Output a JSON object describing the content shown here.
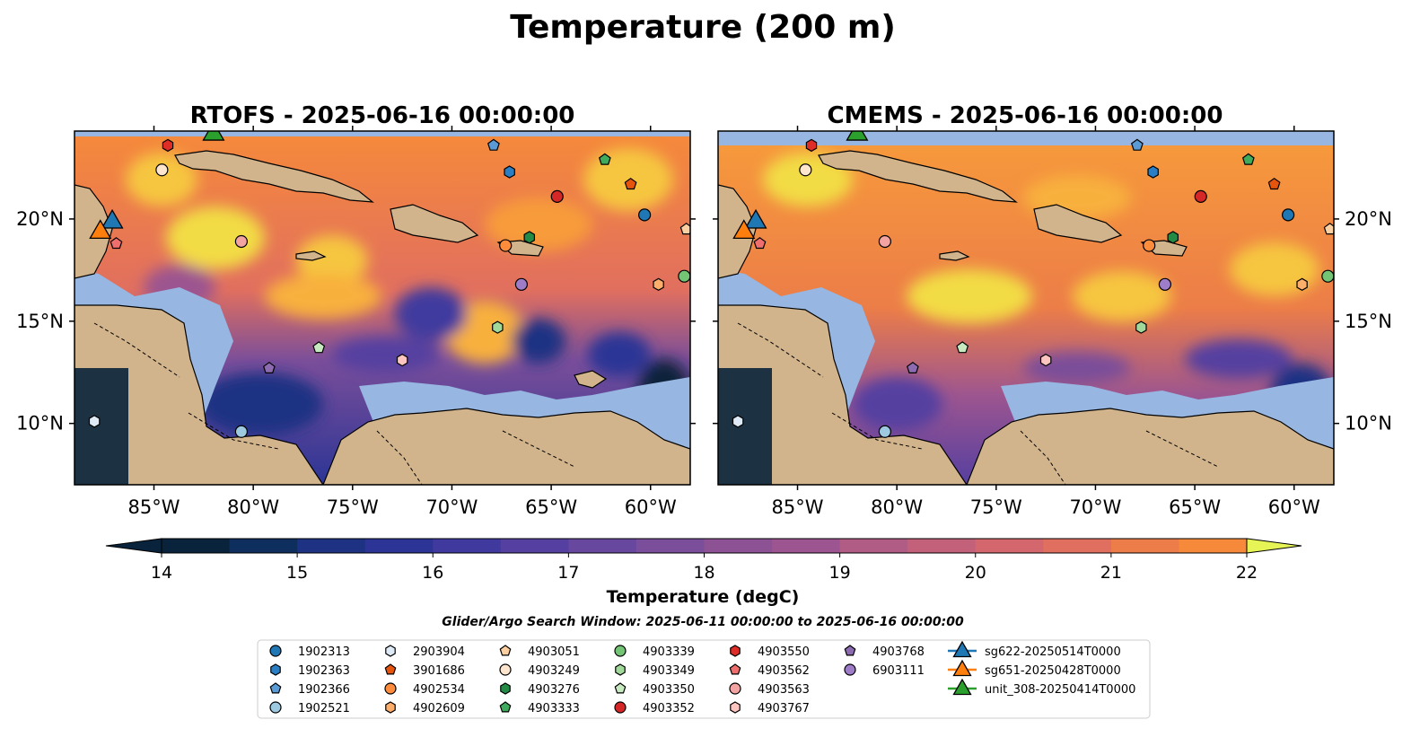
{
  "figure": {
    "title": "Temperature (200 m)",
    "search_window": "Glider/Argo Search Window: 2025-06-11 00:00:00 to 2025-06-16 00:00:00"
  },
  "panels": [
    {
      "title": "RTOFS - 2025-06-16 00:00:00",
      "model": "RTOFS"
    },
    {
      "title": "CMEMS - 2025-06-16 00:00:00",
      "model": "CMEMS"
    }
  ],
  "map": {
    "lon_range": [
      -89,
      -58
    ],
    "lat_range": [
      7,
      24.3
    ],
    "x_ticks": [
      {
        "lon": -85,
        "label": "85°W"
      },
      {
        "lon": -80,
        "label": "80°W"
      },
      {
        "lon": -75,
        "label": "75°W"
      },
      {
        "lon": -70,
        "label": "70°W"
      },
      {
        "lon": -65,
        "label": "65°W"
      },
      {
        "lon": -60,
        "label": "60°W"
      }
    ],
    "y_ticks": [
      {
        "lat": 10,
        "label": "10°N"
      },
      {
        "lat": 15,
        "label": "15°N"
      },
      {
        "lat": 20,
        "label": "20°N"
      }
    ],
    "land_color": "#d2b48c",
    "shelf_color": "#97b6e1"
  },
  "colorbar": {
    "label": "Temperature (degC)",
    "min": 14,
    "max": 22,
    "step": 0.5,
    "ticks": [
      "14",
      "15",
      "16",
      "17",
      "18",
      "19",
      "20",
      "21",
      "22"
    ],
    "colors": [
      "#08233b",
      "#0e2f5e",
      "#1e3283",
      "#2c3595",
      "#403a9f",
      "#553fa0",
      "#68479f",
      "#7a4e9a",
      "#8c5293",
      "#9c5590",
      "#b05c84",
      "#c3617a",
      "#d4676e",
      "#e16f5f",
      "#ec7d48",
      "#f68a3a",
      "#f79b3b",
      "#f8b03e",
      "#f6c63f",
      "#f2dc45",
      "#e6f455"
    ]
  },
  "floats": [
    {
      "id": "1902313",
      "marker": "circle",
      "color": "#1f77b4",
      "lon": -60.3,
      "lat": 20.2
    },
    {
      "id": "1902363",
      "marker": "hexagon",
      "color": "#2a7fc4",
      "lon": -67.1,
      "lat": 22.3
    },
    {
      "id": "1902366",
      "marker": "pentagon",
      "color": "#5a9bd5",
      "lon": -67.9,
      "lat": 23.6
    },
    {
      "id": "1902521",
      "marker": "circle",
      "color": "#9ecae1",
      "lon": -80.6,
      "lat": 9.6
    },
    {
      "id": "2903904",
      "marker": "hexagon",
      "color": "#deebf7",
      "lon": -88.0,
      "lat": 10.1
    },
    {
      "id": "3901686",
      "marker": "pentagon",
      "color": "#e6550d",
      "lon": -61.0,
      "lat": 21.7
    },
    {
      "id": "4902534",
      "marker": "circle",
      "color": "#fd8d3c",
      "lon": -67.3,
      "lat": 18.7
    },
    {
      "id": "4902609",
      "marker": "hexagon",
      "color": "#fdae6b",
      "lon": -59.6,
      "lat": 16.8
    },
    {
      "id": "4903051",
      "marker": "pentagon",
      "color": "#fdd0a2",
      "lon": -58.2,
      "lat": 19.5
    },
    {
      "id": "4903249",
      "marker": "circle",
      "color": "#fee6ce",
      "lon": -84.6,
      "lat": 22.4
    },
    {
      "id": "4903276",
      "marker": "hexagon",
      "color": "#238b45",
      "lon": -66.1,
      "lat": 19.1
    },
    {
      "id": "4903333",
      "marker": "pentagon",
      "color": "#41ab5d",
      "lon": -62.3,
      "lat": 22.9
    },
    {
      "id": "4903339",
      "marker": "circle",
      "color": "#74c476",
      "lon": -58.3,
      "lat": 17.2
    },
    {
      "id": "4903349",
      "marker": "hexagon",
      "color": "#a1d99b",
      "lon": -67.7,
      "lat": 14.7
    },
    {
      "id": "4903350",
      "marker": "pentagon",
      "color": "#c7e9c0",
      "lon": -76.7,
      "lat": 13.7
    },
    {
      "id": "4903352",
      "marker": "circle",
      "color": "#d62728",
      "lon": -64.7,
      "lat": 21.1
    },
    {
      "id": "4903550",
      "marker": "hexagon",
      "color": "#de2d26",
      "lon": -84.3,
      "lat": 23.6
    },
    {
      "id": "4903562",
      "marker": "pentagon",
      "color": "#ef6f6f",
      "lon": -86.9,
      "lat": 18.8
    },
    {
      "id": "4903563",
      "marker": "circle",
      "color": "#f4a3a3",
      "lon": -80.6,
      "lat": 18.9
    },
    {
      "id": "4903767",
      "marker": "hexagon",
      "color": "#fcc5c0",
      "lon": -72.5,
      "lat": 13.1
    },
    {
      "id": "4903768",
      "marker": "pentagon",
      "color": "#8c6bb1",
      "lon": -79.2,
      "lat": 12.7
    },
    {
      "id": "6903111",
      "marker": "circle",
      "color": "#9e7cc8",
      "lon": -66.5,
      "lat": 16.8
    }
  ],
  "gliders": [
    {
      "id": "sg622-20250514T0000",
      "color": "#1f77b4",
      "lon": -87.1,
      "lat": 19.9
    },
    {
      "id": "sg651-20250428T0000",
      "color": "#ff7f0e",
      "lon": -87.7,
      "lat": 19.4
    },
    {
      "id": "unit_308-20250414T0000",
      "color": "#2ca02c",
      "lon": -82.0,
      "lat": 24.2
    }
  ]
}
